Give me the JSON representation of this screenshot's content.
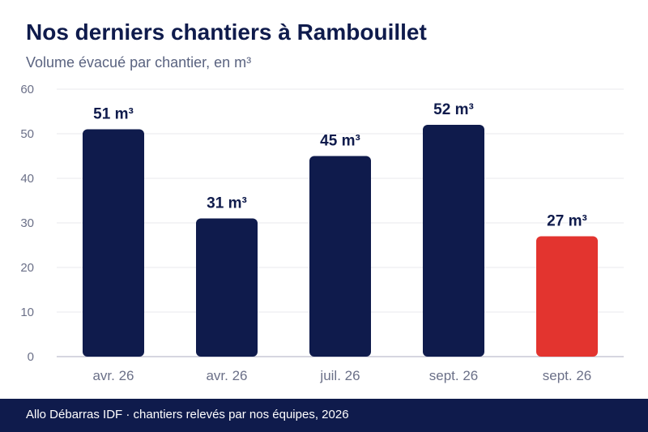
{
  "header": {
    "title": "Nos derniers chantiers à Rambouillet",
    "subtitle": "Volume évacué par chantier, en m³"
  },
  "footer": {
    "text": "Allo Débarras IDF · chantiers relevés par nos équipes, 2026"
  },
  "colors": {
    "bar": "#0f1b4c",
    "highlight": "#e3342f",
    "grid": "#e8e8ee",
    "axis": "#c9c9d6",
    "tick_text": "#6b7088",
    "label_text": "#0f1b4c"
  },
  "chart_data": {
    "type": "bar",
    "title": "Nos derniers chantiers à Rambouillet",
    "subtitle": "Volume évacué par chantier, en m³",
    "categories": [
      "avr. 26",
      "avr. 26",
      "juil. 26",
      "sept. 26",
      "sept. 26"
    ],
    "values": [
      51,
      31,
      45,
      52,
      27
    ],
    "data_labels": [
      "51 m³",
      "31 m³",
      "45 m³",
      "52 m³",
      "27 m³"
    ],
    "highlight_index": 4,
    "ylim": [
      0,
      60
    ],
    "yticks": [
      0,
      10,
      20,
      30,
      40,
      50,
      60
    ],
    "grid": true,
    "legend": "none"
  }
}
